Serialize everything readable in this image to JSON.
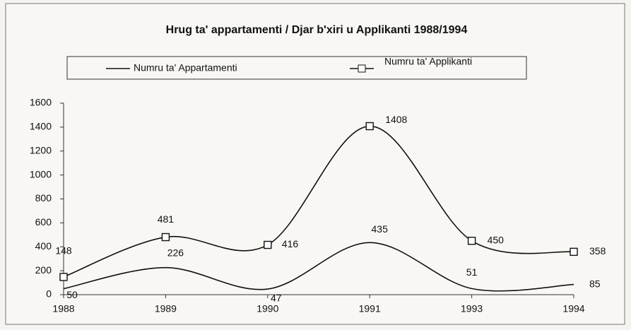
{
  "chart_data": {
    "type": "line",
    "title": "Hrug ta' appartamenti / Djar b'xiri u Applikanti 1988/1994",
    "categories": [
      "1988",
      "1989",
      "1990",
      "1991",
      "1993",
      "1994"
    ],
    "series": [
      {
        "name": "Numru ta' Appartamenti",
        "color": "#111111",
        "marker": "none",
        "values": [
          50,
          226,
          47,
          435,
          51,
          85
        ]
      },
      {
        "name": "Numru ta' Applikanti",
        "color": "#111111",
        "marker": "square",
        "values": [
          148,
          481,
          416,
          1408,
          450,
          358
        ]
      }
    ],
    "ylim": [
      0,
      1600
    ],
    "yticks": [
      0,
      200,
      400,
      600,
      800,
      1000,
      1200,
      1400,
      1600
    ],
    "grid": false,
    "legend": "top",
    "smooth": true
  }
}
